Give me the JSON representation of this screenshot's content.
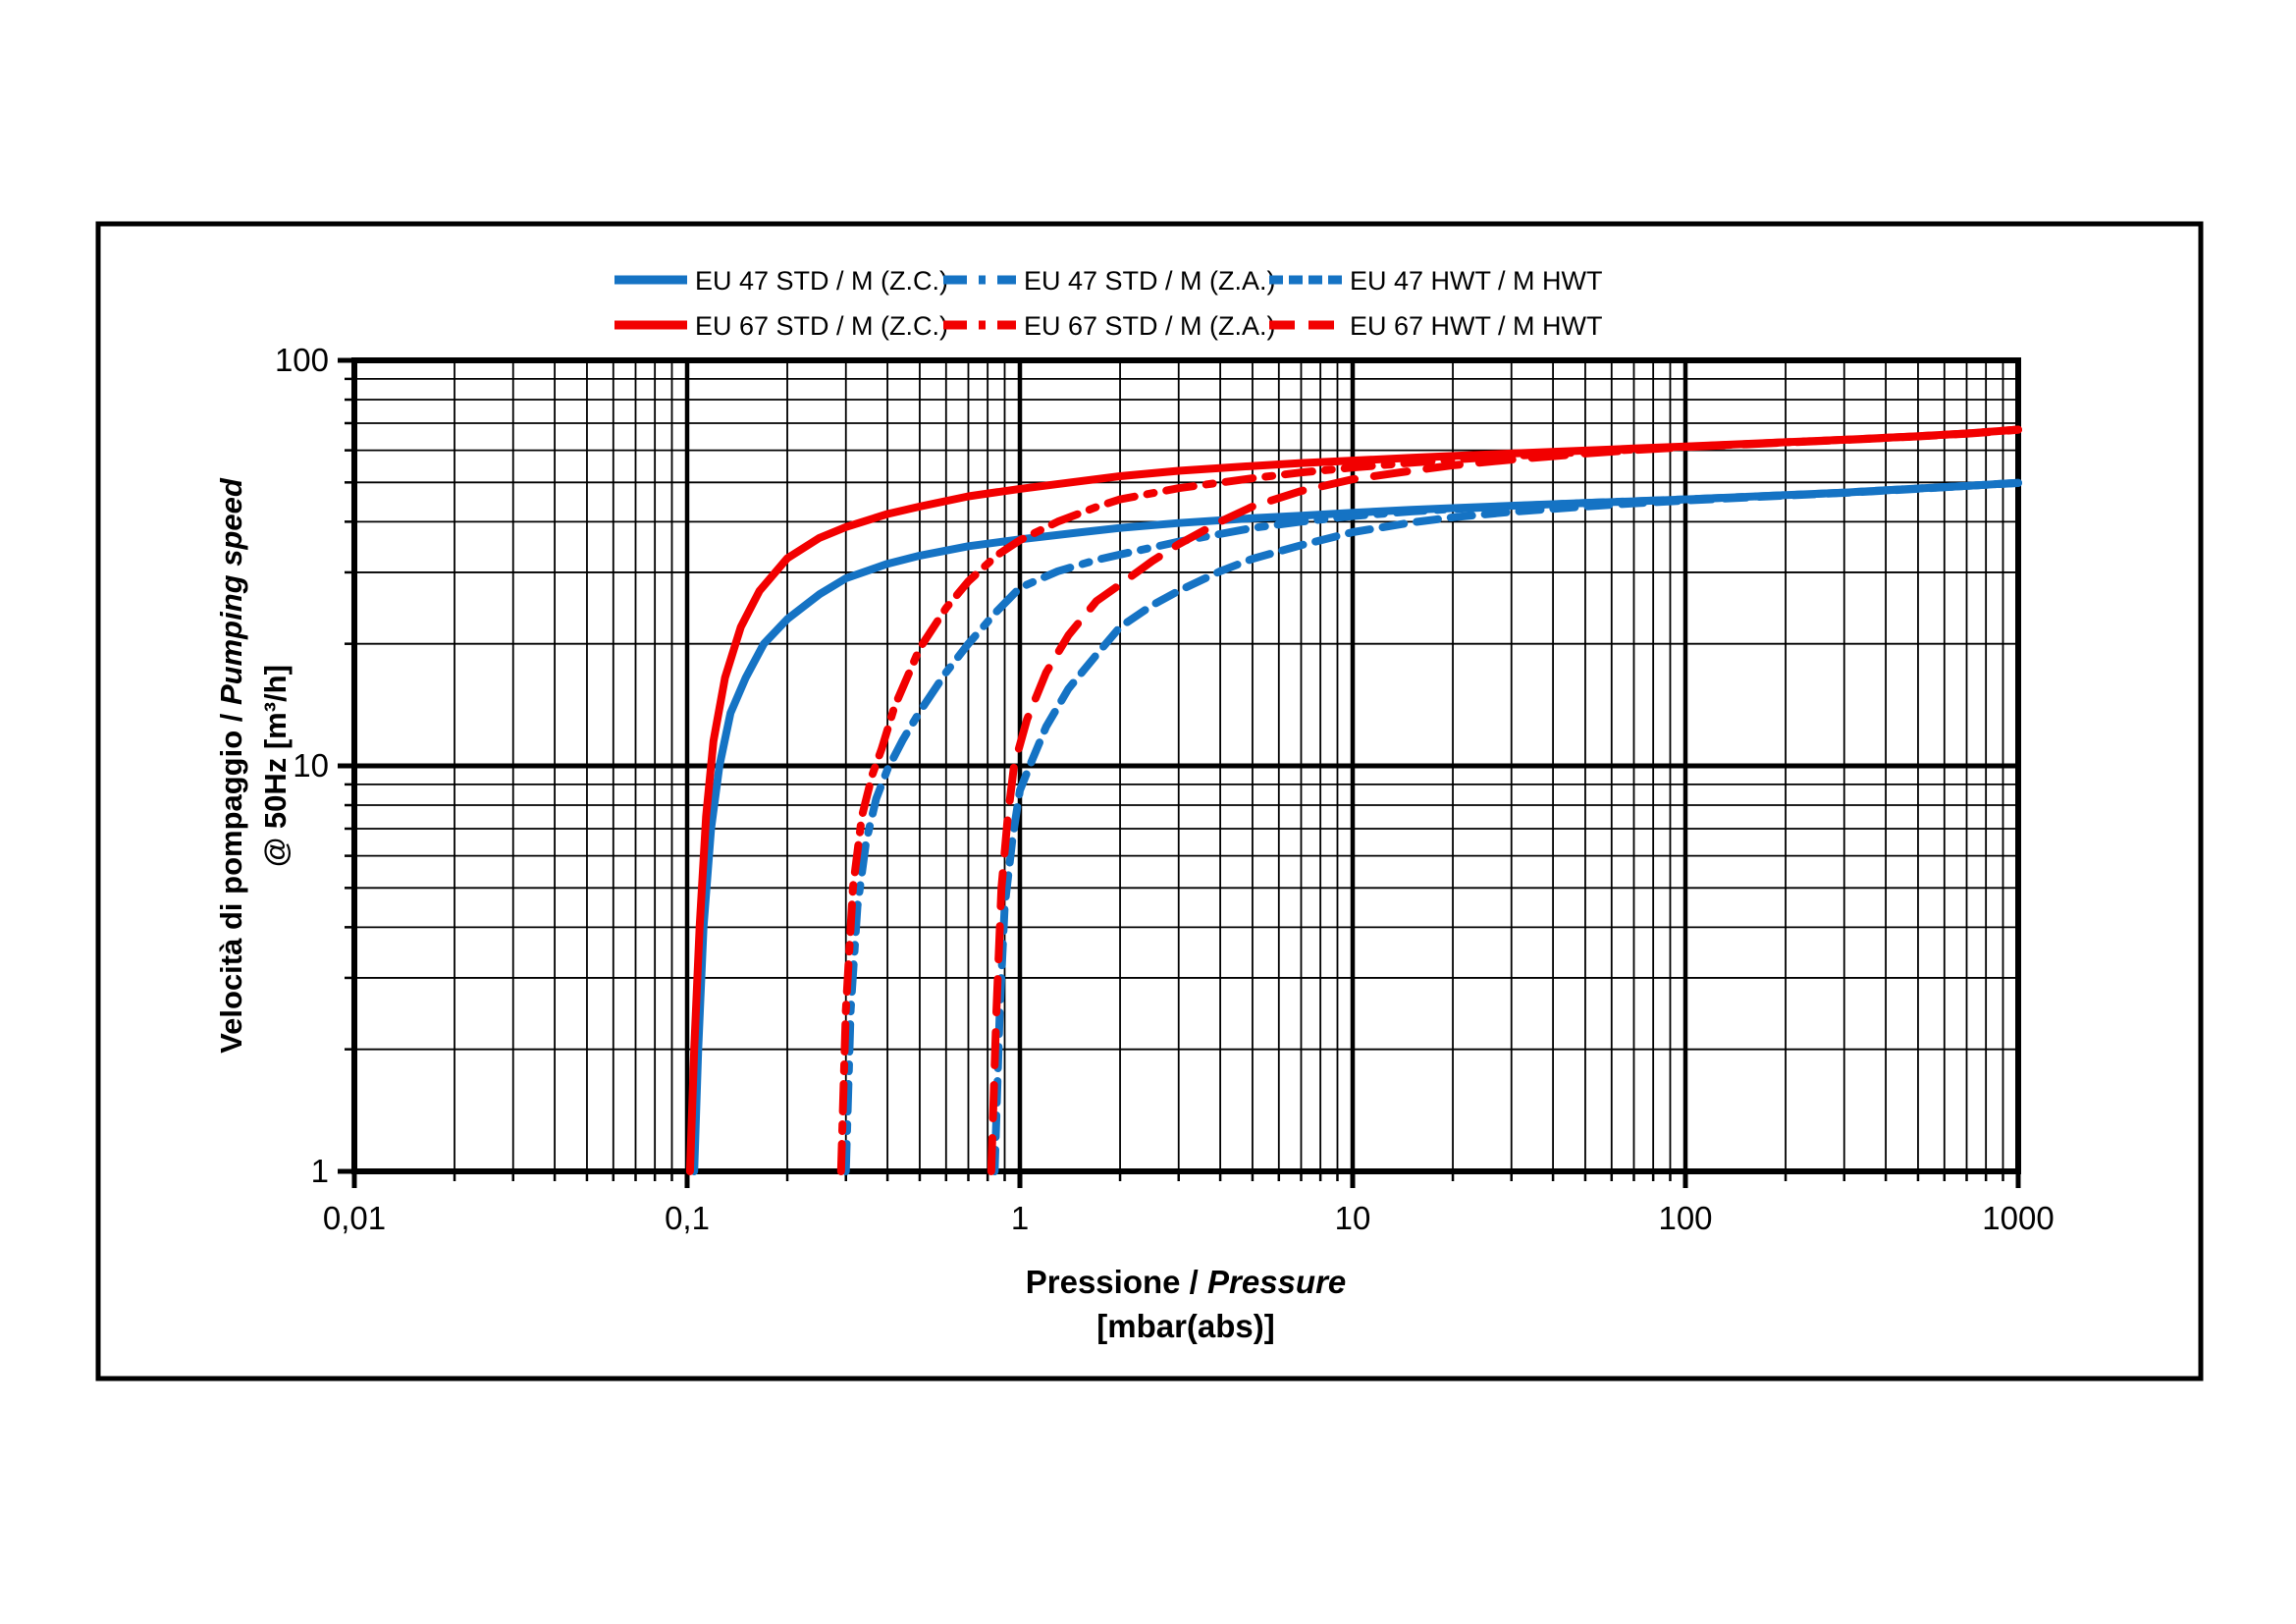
{
  "figure": {
    "background": "#ffffff",
    "border_color": "#000000"
  },
  "chart_data": {
    "type": "line",
    "x_scale": "log",
    "y_scale": "log",
    "xlim": [
      0.01,
      1000
    ],
    "ylim": [
      1,
      100
    ],
    "grid": "full log grid, thin minor lines and thick decade lines, black on white",
    "legend_position": "top",
    "x_title": {
      "normal": "Pressione / ",
      "italic": "Pressure",
      "line2": "[mbar(abs)]"
    },
    "y_title": {
      "normal": "Velocità di pompaggio / ",
      "italic": "Pumping speed",
      "line2": "@ 50Hz [m³/h]"
    },
    "x_ticks": [
      {
        "v": 0.01,
        "label": "0,01"
      },
      {
        "v": 0.1,
        "label": "0,1"
      },
      {
        "v": 1,
        "label": "1"
      },
      {
        "v": 10,
        "label": "10"
      },
      {
        "v": 100,
        "label": "100"
      },
      {
        "v": 1000,
        "label": "1000"
      }
    ],
    "y_ticks": [
      {
        "v": 1,
        "label": "1"
      },
      {
        "v": 10,
        "label": "10"
      },
      {
        "v": 100,
        "label": "100"
      }
    ],
    "colors": {
      "blue": "#1573c4",
      "red": "#f20000"
    },
    "series": [
      {
        "name": "EU 47 STD / M (Z.C.)",
        "color": "blue",
        "style": "solid",
        "points": [
          [
            0.105,
            1
          ],
          [
            0.108,
            2
          ],
          [
            0.112,
            4
          ],
          [
            0.118,
            7
          ],
          [
            0.125,
            10
          ],
          [
            0.135,
            13.5
          ],
          [
            0.15,
            16.5
          ],
          [
            0.17,
            20
          ],
          [
            0.2,
            23
          ],
          [
            0.25,
            26.5
          ],
          [
            0.3,
            29
          ],
          [
            0.4,
            31.5
          ],
          [
            0.5,
            33
          ],
          [
            0.7,
            34.8
          ],
          [
            1,
            36.2
          ],
          [
            1.5,
            37.6
          ],
          [
            2,
            38.6
          ],
          [
            3,
            39.7
          ],
          [
            5,
            40.8
          ],
          [
            7,
            41.4
          ],
          [
            10,
            42.1
          ],
          [
            15,
            42.8
          ],
          [
            20,
            43.2
          ],
          [
            30,
            43.8
          ],
          [
            50,
            44.5
          ],
          [
            70,
            44.9
          ],
          [
            100,
            45.4
          ],
          [
            200,
            46.5
          ],
          [
            300,
            47.2
          ],
          [
            500,
            48.3
          ],
          [
            700,
            49
          ],
          [
            1000,
            49.9
          ]
        ]
      },
      {
        "name": "EU 47 STD / M (Z.A.)",
        "color": "blue",
        "style": "dash-dot",
        "points": [
          [
            0.3,
            1
          ],
          [
            0.31,
            2.5
          ],
          [
            0.325,
            4.5
          ],
          [
            0.345,
            6.5
          ],
          [
            0.37,
            8.3
          ],
          [
            0.4,
            9.8
          ],
          [
            0.445,
            11.6
          ],
          [
            0.5,
            13.6
          ],
          [
            0.6,
            17
          ],
          [
            0.7,
            20
          ],
          [
            0.85,
            24
          ],
          [
            1,
            27.5
          ],
          [
            1.3,
            30.2
          ],
          [
            1.7,
            32.2
          ],
          [
            2,
            33.2
          ],
          [
            3,
            35.7
          ],
          [
            5,
            38.6
          ],
          [
            7,
            40
          ],
          [
            10,
            41.3
          ],
          [
            15,
            42.4
          ],
          [
            20,
            43
          ],
          [
            30,
            43.7
          ],
          [
            50,
            44.5
          ],
          [
            100,
            45.4
          ],
          [
            200,
            46.5
          ],
          [
            300,
            47.2
          ],
          [
            500,
            48.3
          ],
          [
            700,
            49
          ],
          [
            1000,
            49.9
          ]
        ]
      },
      {
        "name": "EU 47 HWT / M HWT",
        "color": "blue",
        "style": "dashed",
        "points": [
          [
            0.84,
            1
          ],
          [
            0.87,
            2.5
          ],
          [
            0.9,
            4.5
          ],
          [
            0.95,
            6.6
          ],
          [
            1.0,
            8.7
          ],
          [
            1.07,
            10
          ],
          [
            1.2,
            12.5
          ],
          [
            1.4,
            15.5
          ],
          [
            1.7,
            18.8
          ],
          [
            2,
            22
          ],
          [
            2.5,
            24.9
          ],
          [
            3,
            27
          ],
          [
            4,
            30.2
          ],
          [
            5,
            32.4
          ],
          [
            7,
            35
          ],
          [
            10,
            37.7
          ],
          [
            15,
            39.8
          ],
          [
            20,
            41
          ],
          [
            30,
            42.3
          ],
          [
            50,
            43.6
          ],
          [
            70,
            44.4
          ],
          [
            100,
            45.1
          ],
          [
            200,
            46.4
          ],
          [
            300,
            47.1
          ],
          [
            500,
            48.2
          ],
          [
            700,
            49
          ],
          [
            1000,
            49.8
          ]
        ]
      },
      {
        "name": "EU 67 STD / M (Z.C.)",
        "color": "red",
        "style": "solid",
        "points": [
          [
            0.102,
            1
          ],
          [
            0.105,
            2
          ],
          [
            0.109,
            4
          ],
          [
            0.114,
            7.5
          ],
          [
            0.12,
            11.5
          ],
          [
            0.13,
            16.5
          ],
          [
            0.145,
            22
          ],
          [
            0.165,
            27
          ],
          [
            0.2,
            32.5
          ],
          [
            0.25,
            36.5
          ],
          [
            0.3,
            38.8
          ],
          [
            0.4,
            41.8
          ],
          [
            0.5,
            43.6
          ],
          [
            0.7,
            46.2
          ],
          [
            1,
            48.2
          ],
          [
            1.5,
            50.3
          ],
          [
            2,
            51.8
          ],
          [
            3,
            53.4
          ],
          [
            5,
            54.9
          ],
          [
            7,
            55.8
          ],
          [
            10,
            56.6
          ],
          [
            15,
            57.5
          ],
          [
            20,
            58.1
          ],
          [
            30,
            58.9
          ],
          [
            50,
            59.9
          ],
          [
            70,
            60.6
          ],
          [
            100,
            61.3
          ],
          [
            200,
            62.8
          ],
          [
            300,
            63.7
          ],
          [
            500,
            65
          ],
          [
            700,
            66
          ],
          [
            1000,
            67.5
          ]
        ]
      },
      {
        "name": "EU 67 STD / M (Z.A.)",
        "color": "red",
        "style": "dash-dot",
        "points": [
          [
            0.29,
            1
          ],
          [
            0.3,
            2.5
          ],
          [
            0.315,
            5
          ],
          [
            0.335,
            7.5
          ],
          [
            0.36,
            9.5
          ],
          [
            0.384,
            11
          ],
          [
            0.42,
            14
          ],
          [
            0.5,
            19.5
          ],
          [
            0.6,
            24.5
          ],
          [
            0.7,
            28.5
          ],
          [
            0.85,
            33
          ],
          [
            1,
            36
          ],
          [
            1.3,
            40
          ],
          [
            1.7,
            43.5
          ],
          [
            2,
            45.4
          ],
          [
            3,
            48.4
          ],
          [
            5,
            51.2
          ],
          [
            7,
            52.9
          ],
          [
            10,
            54.4
          ],
          [
            15,
            55.9
          ],
          [
            20,
            56.9
          ],
          [
            30,
            58.1
          ],
          [
            50,
            59.4
          ],
          [
            100,
            61.2
          ],
          [
            200,
            62.8
          ],
          [
            300,
            63.7
          ],
          [
            500,
            65
          ],
          [
            700,
            66
          ],
          [
            1000,
            67.5
          ]
        ]
      },
      {
        "name": "EU 67 HWT / M HWT",
        "color": "red",
        "style": "dashed",
        "points": [
          [
            0.82,
            1
          ],
          [
            0.85,
            2.5
          ],
          [
            0.88,
            5
          ],
          [
            0.92,
            7.5
          ],
          [
            0.96,
            10
          ],
          [
            1.05,
            13
          ],
          [
            1.2,
            17
          ],
          [
            1.4,
            21
          ],
          [
            1.7,
            25.5
          ],
          [
            2,
            28
          ],
          [
            2.5,
            32
          ],
          [
            3,
            35.2
          ],
          [
            4,
            40
          ],
          [
            5,
            43.6
          ],
          [
            7,
            47.6
          ],
          [
            10,
            50.9
          ],
          [
            15,
            53.4
          ],
          [
            20,
            55.1
          ],
          [
            30,
            56.9
          ],
          [
            50,
            58.9
          ],
          [
            70,
            60.1
          ],
          [
            100,
            61.1
          ],
          [
            200,
            62.7
          ],
          [
            300,
            63.6
          ],
          [
            500,
            64.9
          ],
          [
            700,
            65.9
          ],
          [
            1000,
            67.4
          ]
        ]
      }
    ]
  }
}
